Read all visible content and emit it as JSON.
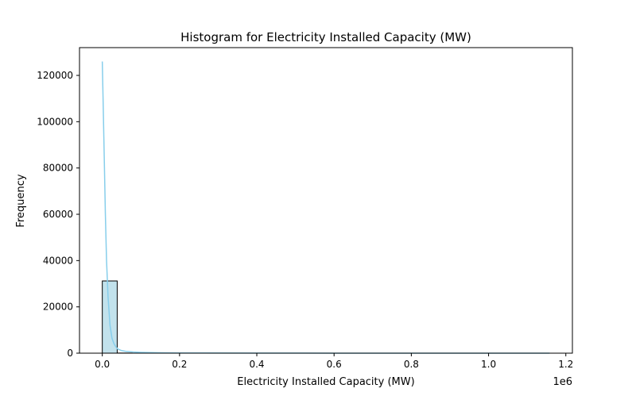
{
  "chart_data": {
    "type": "bar",
    "title": "Histogram for Electricity Installed Capacity (MW)",
    "xlabel": "Electricity Installed Capacity (MW)",
    "ylabel": "Frequency",
    "x_offset_label": "1e6",
    "xlim": [
      -0.059,
      1.217
    ],
    "ylim": [
      0,
      132000
    ],
    "x_ticks": [
      {
        "value": 0.0,
        "label": "0.0"
      },
      {
        "value": 0.2,
        "label": "0.2"
      },
      {
        "value": 0.4,
        "label": "0.4"
      },
      {
        "value": 0.6,
        "label": "0.6"
      },
      {
        "value": 0.8,
        "label": "0.8"
      },
      {
        "value": 1.0,
        "label": "1.0"
      },
      {
        "value": 1.2,
        "label": "1.2"
      }
    ],
    "y_ticks": [
      {
        "value": 0,
        "label": "0"
      },
      {
        "value": 20000,
        "label": "20000"
      },
      {
        "value": 40000,
        "label": "40000"
      },
      {
        "value": 60000,
        "label": "60000"
      },
      {
        "value": 80000,
        "label": "80000"
      },
      {
        "value": 100000,
        "label": "100000"
      },
      {
        "value": 120000,
        "label": "120000"
      }
    ],
    "bins": [
      {
        "x0": 0.0,
        "x1": 0.0386,
        "count": 31200
      },
      {
        "x0": 0.0386,
        "x1": 0.0772,
        "count": 60
      },
      {
        "x0": 0.0772,
        "x1": 0.1158,
        "count": 20
      },
      {
        "x0": 0.1158,
        "x1": 0.1544,
        "count": 10
      }
    ],
    "kde": {
      "x": [
        0.0,
        0.002,
        0.005,
        0.008,
        0.011,
        0.015,
        0.02,
        0.025,
        0.03,
        0.035,
        0.04,
        0.05,
        0.06,
        0.08,
        0.1,
        0.15,
        0.2,
        0.4,
        0.6,
        0.8,
        1.0,
        1.158
      ],
      "y": [
        126000,
        110000,
        85000,
        60000,
        40000,
        24000,
        12000,
        6500,
        4200,
        2800,
        1800,
        1100,
        800,
        500,
        350,
        150,
        80,
        40,
        20,
        10,
        5,
        0
      ]
    },
    "colors": {
      "bar_fill": "#add8e6",
      "bar_fill_opacity": 0.75,
      "bar_edge": "#000000",
      "kde_line": "#87ceeb"
    },
    "grid": false
  }
}
